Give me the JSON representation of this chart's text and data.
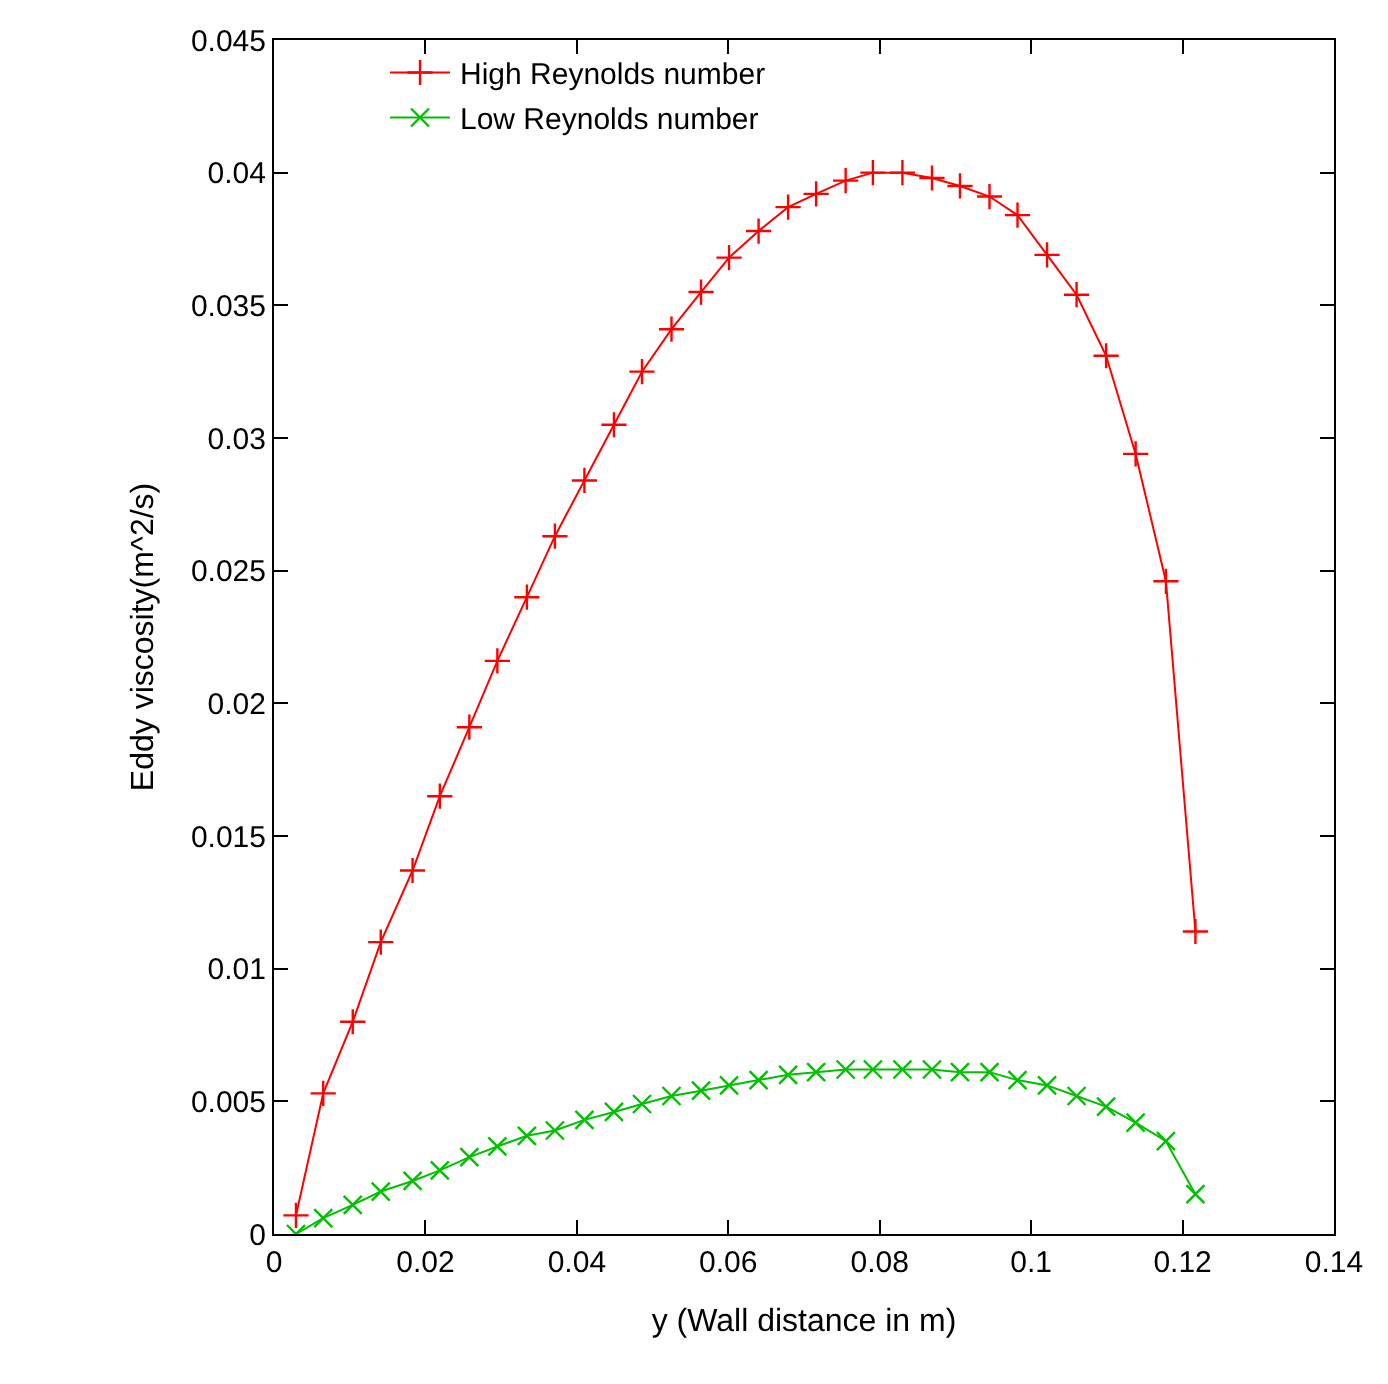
{
  "chart_data": {
    "type": "line",
    "xlabel": "y (Wall distance in m)",
    "ylabel": "Eddy viscosity(m^2/s)",
    "xlim": [
      0,
      0.14
    ],
    "xticks": [
      0,
      0.02,
      0.04,
      0.06,
      0.08,
      0.1,
      0.12,
      0.14
    ],
    "ylim": [
      0,
      0.045
    ],
    "yticks": [
      0,
      0.005,
      0.01,
      0.015,
      0.02,
      0.025,
      0.03,
      0.035,
      0.04,
      0.045
    ],
    "x": [
      0.0029,
      0.0065,
      0.0104,
      0.0141,
      0.0183,
      0.0219,
      0.0258,
      0.0295,
      0.0334,
      0.0371,
      0.041,
      0.0449,
      0.0486,
      0.0525,
      0.0564,
      0.0601,
      0.064,
      0.0679,
      0.0716,
      0.0755,
      0.0791,
      0.083,
      0.0869,
      0.0906,
      0.0945,
      0.0982,
      0.1021,
      0.106,
      0.1099,
      0.1138,
      0.1178,
      0.1217
    ],
    "series": [
      {
        "name": "High Reynolds number",
        "color": "#ff0000",
        "marker": "cross",
        "values": [
          0.0007,
          0.0053,
          0.008,
          0.011,
          0.0137,
          0.0165,
          0.0191,
          0.0216,
          0.024,
          0.0263,
          0.0284,
          0.0305,
          0.0325,
          0.0341,
          0.0355,
          0.0368,
          0.0378,
          0.0387,
          0.0392,
          0.0397,
          0.04,
          0.04,
          0.0398,
          0.0395,
          0.0391,
          0.0384,
          0.0369,
          0.0354,
          0.0331,
          0.0294,
          0.0246,
          0.0114
        ]
      },
      {
        "name": "Low Reynolds number",
        "color": "#00c000",
        "marker": "x",
        "values": [
          0,
          0.0006,
          0.0011,
          0.0016,
          0.002,
          0.0024,
          0.0029,
          0.0033,
          0.0037,
          0.0039,
          0.0043,
          0.0046,
          0.0049,
          0.0052,
          0.0054,
          0.0056,
          0.0058,
          0.006,
          0.0061,
          0.0062,
          0.0062,
          0.0062,
          0.0062,
          0.0061,
          0.0061,
          0.0058,
          0.0056,
          0.0052,
          0.0048,
          0.0042,
          0.0035,
          0.0015
        ]
      }
    ],
    "legend": "top left",
    "line_style": "solid"
  }
}
